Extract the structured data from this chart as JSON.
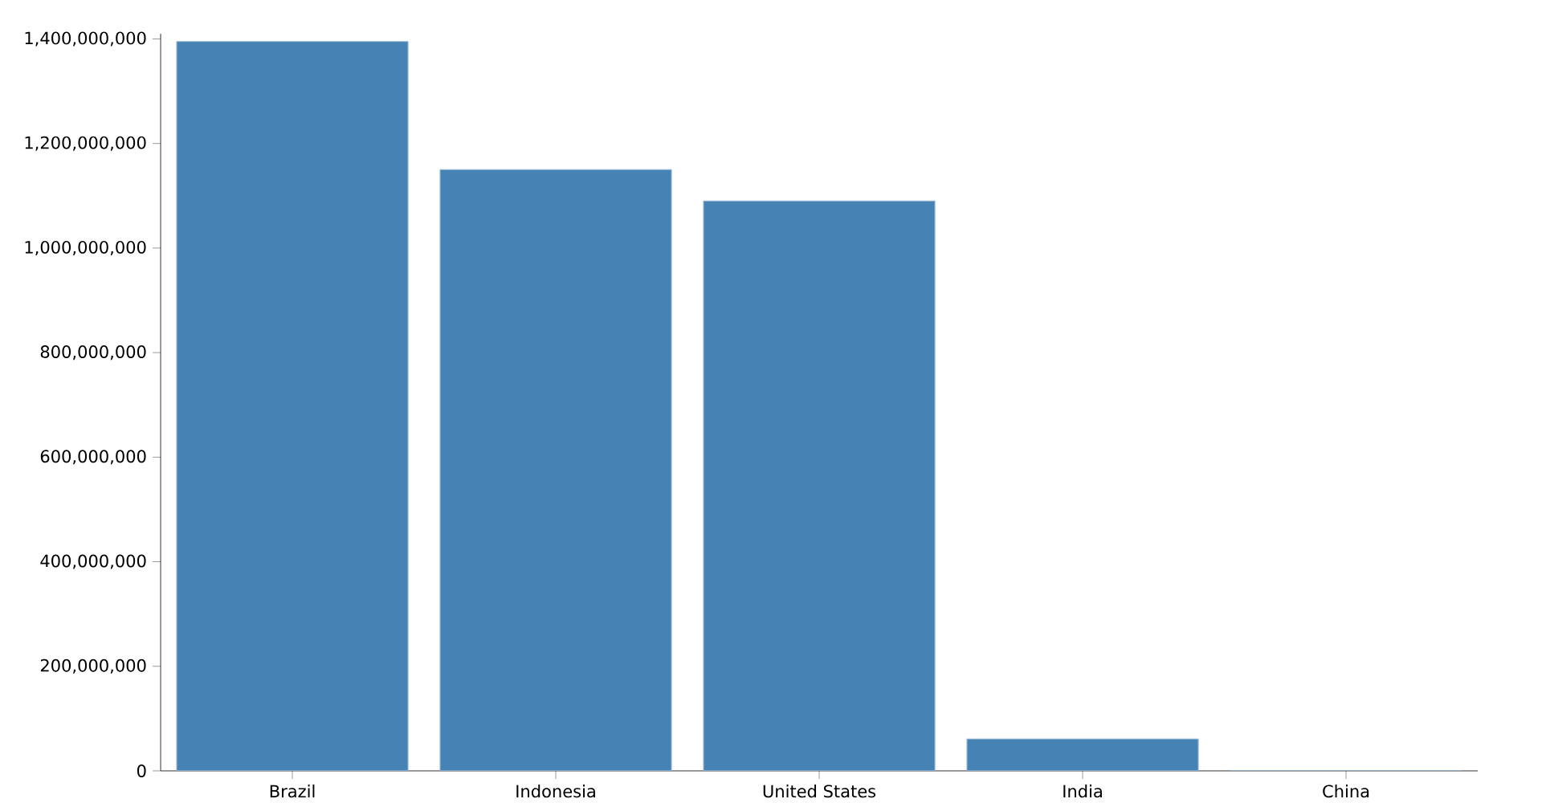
{
  "chart_data": {
    "type": "bar",
    "categories": [
      "Brazil",
      "Indonesia",
      "United States",
      "India",
      "China"
    ],
    "values": [
      1395000000,
      1150000000,
      1090000000,
      61000000,
      0
    ],
    "color": "#4682b4",
    "ylim": [
      0,
      1410000000
    ],
    "yticks": [
      {
        "value": 0,
        "label": "0"
      },
      {
        "value": 200000000,
        "label": "200,000,000"
      },
      {
        "value": 400000000,
        "label": "400,000,000"
      },
      {
        "value": 600000000,
        "label": "600,000,000"
      },
      {
        "value": 800000000,
        "label": "800,000,000"
      },
      {
        "value": 1000000000,
        "label": "1,000,000,000"
      },
      {
        "value": 1200000000,
        "label": "1,200,000,000"
      },
      {
        "value": 1400000000,
        "label": "1,400,000,000"
      }
    ],
    "grid": false
  }
}
